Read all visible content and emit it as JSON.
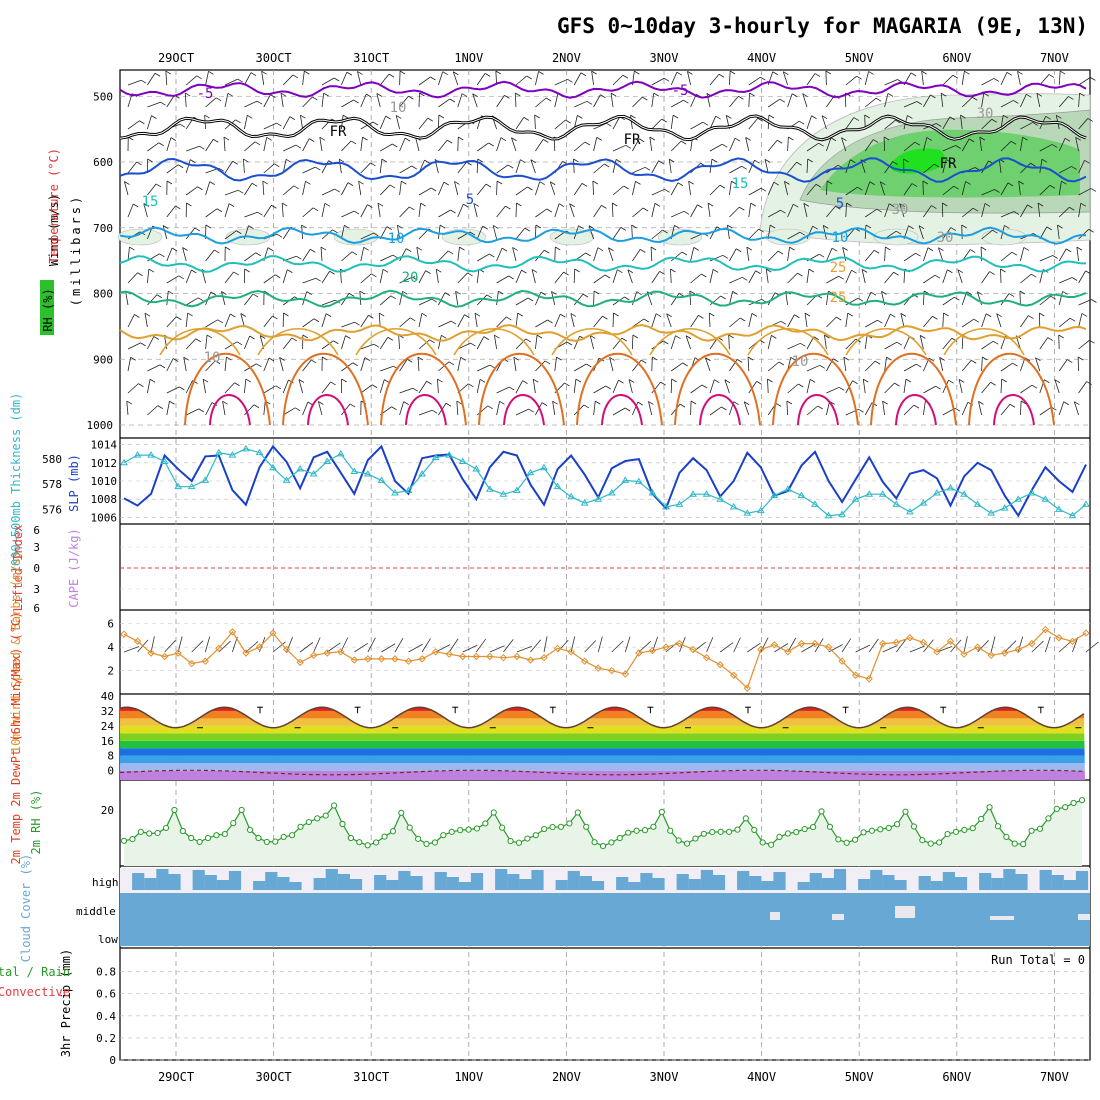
{
  "title": "GFS 0~10day 3-hourly for MAGARIA (9E, 13N)",
  "colors": {
    "purple": "#8000c0",
    "blue": "#1a4fd0",
    "lightblue": "#1c9ee0",
    "teal": "#20c0b8",
    "green_line": "#20b080",
    "orange": "#e0a030",
    "darkorange": "#e07020",
    "magenta": "#d0107a",
    "rh_light": "#e4f2e4",
    "rh_mid": "#b8d8b8",
    "rh_dark": "#6ed06e",
    "rh_bright": "#20e020",
    "slp": "#1a40c8",
    "thickness": "#30b8c8",
    "wind10m": "#e09030",
    "rh2m": "#2a9a2a",
    "cloud": "#68a8d4",
    "cloud_clear": "#f2eef6",
    "lifted": "#e04040",
    "cape": "#c080e0"
  },
  "chart_data": {
    "type": "meteogram",
    "x_dates": [
      "29OCT",
      "30OCT",
      "31OCT",
      "1NOV",
      "2NOV",
      "3NOV",
      "4NOV",
      "5NOV",
      "6NOV",
      "7NOV"
    ],
    "panels": {
      "upper_air": {
        "ylabel": "(millibars)",
        "legend": [
          "Wind (m/s)",
          "Temperature (°C)",
          "RH (%)"
        ],
        "y_ticks": [
          "500",
          "600",
          "700",
          "800",
          "900",
          "1000"
        ],
        "ylim": [
          460,
          1000
        ],
        "isotherms": [
          {
            "label": "-5",
            "p": 490
          },
          {
            "label": "FR",
            "p": 548
          },
          {
            "label": "-5",
            "p": 612
          },
          {
            "label": "10",
            "p": 712
          },
          {
            "label": "15",
            "p": 755
          },
          {
            "label": "20",
            "p": 808
          },
          {
            "label": "25",
            "p": 860
          }
        ],
        "contour_labels": [
          "-5",
          "-5",
          "FR",
          "FR",
          "FR",
          "5",
          "5",
          "10",
          "10",
          "15",
          "15",
          "20",
          "25",
          "25",
          "10",
          "10",
          "10",
          "30",
          "30",
          "30"
        ]
      },
      "slp_thickness": {
        "ylabel_left": "1000~500mb Thickness (dm)",
        "ylabel_right": "SLP (mb)",
        "left_ticks": [
          "580",
          "578",
          "576"
        ],
        "right_ticks": [
          "1014",
          "1012",
          "1010",
          "1008",
          "1006"
        ],
        "slp_mb": [
          1008.1,
          1007.3,
          1008.6,
          1012.8,
          1011.3,
          1010,
          1012.7,
          1012.8,
          1009,
          1007.4,
          1011.5,
          1013.8,
          1012.1,
          1009.2,
          1012.6,
          1013.2,
          1010.9,
          1008.6,
          1012.3,
          1013.8,
          1010,
          1008.6,
          1012.5,
          1012.8,
          1012.9,
          1010.2,
          1008,
          1011.5,
          1013.2,
          1012.8,
          1009.6,
          1007.4,
          1011.3,
          1012.8,
          1010.7,
          1008.2,
          1011.4,
          1012.2,
          1012.4,
          1008.6,
          1007,
          1010.9,
          1012.5,
          1011.2,
          1008.3,
          1010,
          1013.1,
          1011.5,
          1008.4,
          1008.9,
          1011.7,
          1013.2,
          1010,
          1007.7,
          1010.2,
          1012.6,
          1009.9,
          1008.1,
          1010.8,
          1011.2,
          1010.3,
          1007.3,
          1010.5,
          1012,
          1011.2,
          1008.4,
          1006.2,
          1009,
          1011.5,
          1010,
          1008.8,
          1011.8
        ],
        "thickness_dm": [
          579.7,
          580.3,
          580.3,
          579.8,
          577.8,
          577.8,
          578.3,
          580.5,
          580.3,
          580.8,
          580.5,
          579.3,
          578.3,
          579.2,
          578.8,
          579.8,
          580.4,
          579,
          578.8,
          578.3,
          577.3,
          577.5,
          578.8,
          580.1,
          580.3,
          579.8,
          579.2,
          577.6,
          577.2,
          577.5,
          578.9,
          579.3,
          577.8,
          577,
          576.5,
          576.8,
          577.3,
          578.3,
          578.2,
          577.3,
          576.2,
          576.4,
          577.2,
          577.2,
          576.8,
          576.2,
          575.7,
          575.9,
          577.1,
          577.6,
          577.1,
          576.4,
          575.5,
          575.6,
          576.8,
          577.2,
          577.2,
          576.4,
          575.8,
          576.5,
          577.3,
          577.7,
          577.2,
          576.4,
          575.7,
          576.1,
          576.8,
          577.3,
          576.8,
          576,
          575.5,
          576.4
        ]
      },
      "stability": {
        "ylabel_left": "Lifted Index",
        "ylabel_right": "CAPE (J/kg)",
        "ticks": [
          "6",
          "3",
          "0",
          "3",
          "6"
        ]
      },
      "wind10m": {
        "ylabel": "10m Wind Speed & Barbs (m/s)",
        "ticks": [
          "6",
          "4",
          "2"
        ],
        "speed_ms": [
          5.1,
          4.5,
          3.5,
          3.2,
          3.5,
          2.6,
          2.8,
          3.9,
          5.3,
          3.5,
          4,
          5.2,
          3.8,
          2.7,
          3.3,
          3.5,
          3.6,
          2.9,
          3,
          3,
          3,
          2.8,
          3,
          3.6,
          3.4,
          3.2,
          3.2,
          3.2,
          3.1,
          3.2,
          2.9,
          3.1,
          3.9,
          3.6,
          2.8,
          2.2,
          2,
          1.7,
          3.5,
          3.7,
          4,
          4.3,
          3.8,
          3.1,
          2.5,
          1.6,
          0.5,
          3.8,
          4.2,
          3.6,
          4.3,
          4.3,
          4,
          2.8,
          1.6,
          1.3,
          4.3,
          4.4,
          4.8,
          4.4,
          3.6,
          4.5,
          3.4,
          4,
          3.3,
          3.5,
          3.8,
          4.3,
          5.5,
          4.8,
          4.5,
          5.2
        ]
      },
      "temp2m": {
        "ylabel": "2m Temp 2m DewPt (6hr Min/Max) (°C)",
        "ticks": [
          "40",
          "32",
          "24",
          "16",
          "8",
          "0"
        ],
        "max_c": [
          34,
          34,
          34,
          34,
          34,
          34,
          34,
          34,
          34
        ],
        "min_c": [
          23,
          23,
          23,
          23,
          23,
          23,
          23,
          23,
          23,
          23
        ]
      },
      "rh2m": {
        "ylabel": "2m RH (%)",
        "ticks": [
          "20"
        ],
        "values": [
          9,
          9.6,
          12.2,
          11.6,
          11.8,
          13.6,
          20,
          12.5,
          10,
          8.6,
          10,
          11,
          11.4,
          15.3,
          20,
          12.9,
          10,
          8.6,
          8.7,
          10.4,
          11,
          14,
          15.7,
          17,
          18,
          21.6,
          15,
          10,
          8.5,
          7.4,
          8.4,
          10.5,
          12.4,
          19,
          13.7,
          9.7,
          7.9,
          8.4,
          11,
          12.2,
          12.8,
          13,
          13.4,
          15.2,
          19.1,
          13.7,
          8.9,
          8.3,
          9.8,
          11,
          13.2,
          13.9,
          14,
          15.2,
          19.1,
          14,
          8.5,
          7.1,
          8.4,
          10,
          11.9,
          12.6,
          12.8,
          14,
          19.3,
          12.6,
          9.1,
          8,
          9.8,
          11.5,
          12.1,
          12.2,
          12.2,
          13,
          17,
          12.9,
          8.4,
          7.6,
          10.4,
          11.6,
          12.1,
          13.2,
          13.9,
          19.5,
          14,
          9.5,
          8.3,
          9.4,
          12,
          12.6,
          13.1,
          13.6,
          14.9,
          19.4,
          14.1,
          9.2,
          8,
          8.4,
          11.4,
          12.2,
          12.9,
          13.5,
          16.8,
          21,
          14.2,
          10.4,
          8,
          7.8,
          12.6,
          13.3,
          17,
          20.4,
          21,
          22.5,
          23.5
        ]
      },
      "cloud": {
        "ylabel": "Cloud Cover (%)",
        "levels": [
          "high",
          "middle",
          "low"
        ]
      },
      "precip": {
        "ylabel": "3hr Precip (mm)",
        "legend": [
          "Total / Rain",
          "Convective"
        ],
        "ticks": [
          "0.8",
          "0.6",
          "0.4",
          "0.2",
          "0"
        ],
        "run_total": "Run Total = 0",
        "values": [
          0,
          0,
          0,
          0,
          0,
          0,
          0,
          0,
          0,
          0
        ]
      }
    }
  }
}
